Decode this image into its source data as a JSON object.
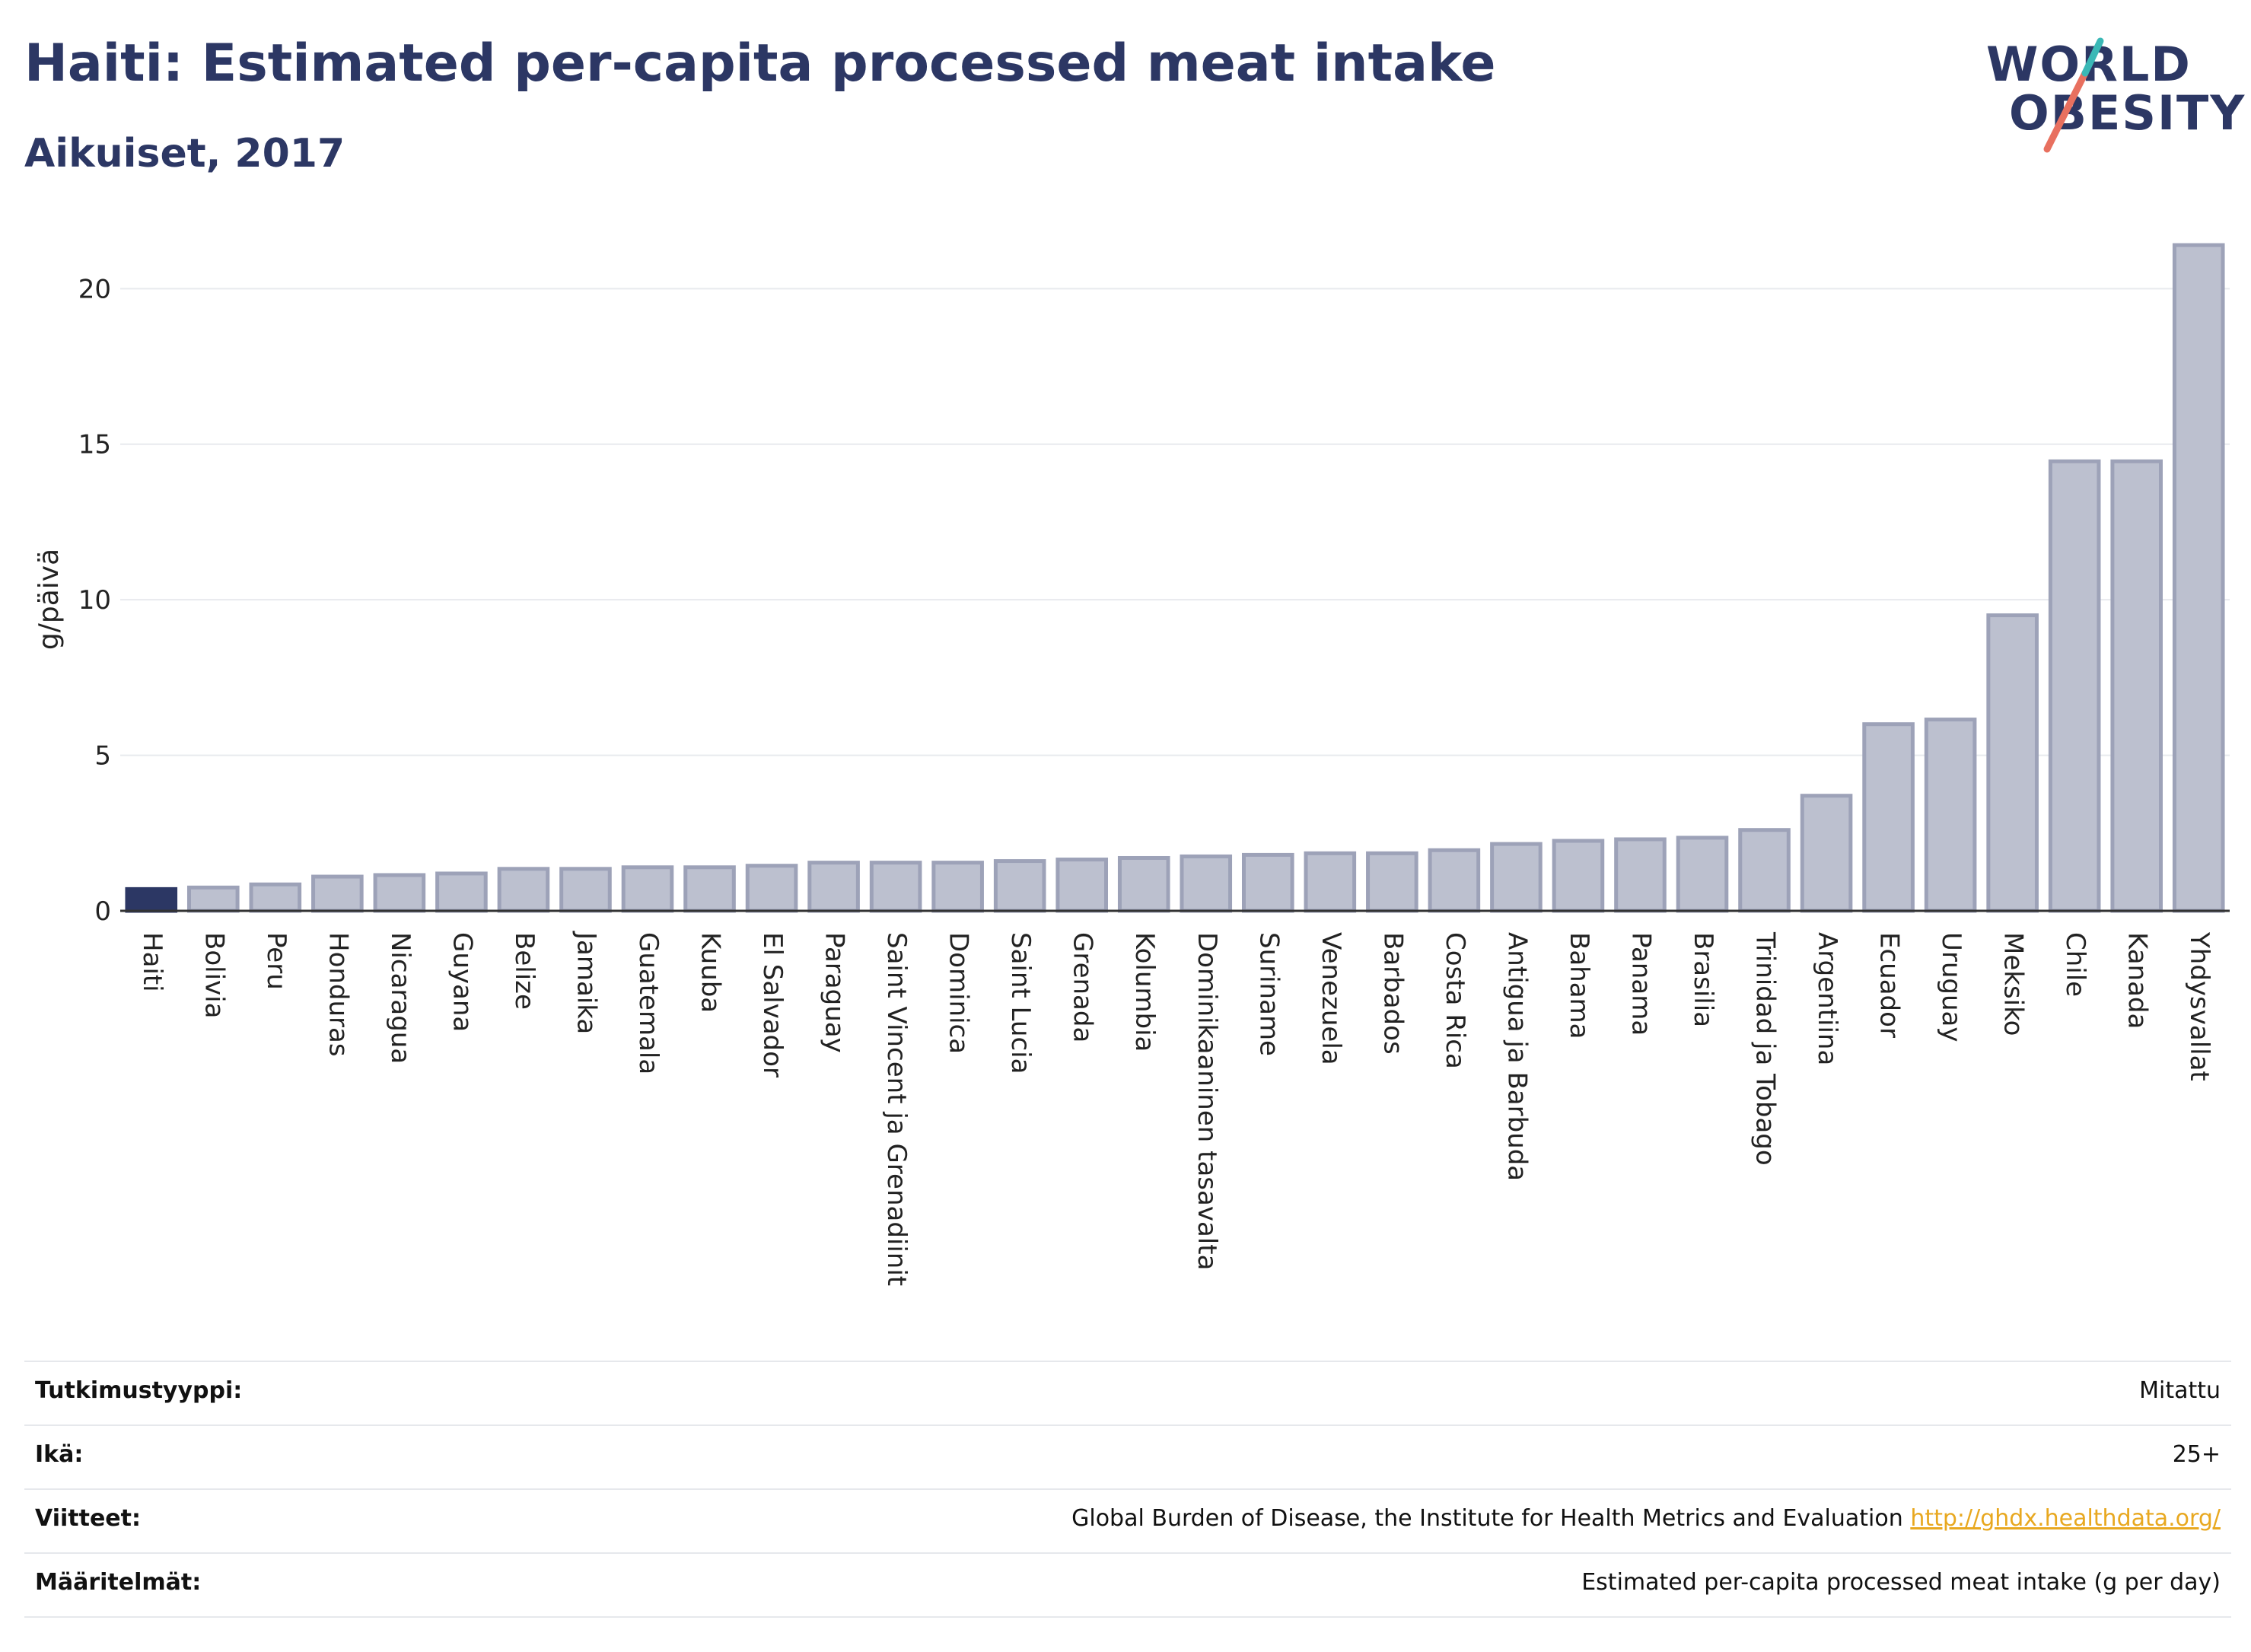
{
  "title": "Haiti: Estimated per-capita processed meat intake",
  "subtitle": "Aikuiset, 2017",
  "logo": {
    "line1": "WORLD",
    "line2": "OBESITY"
  },
  "colors": {
    "highlight": "#2c3764",
    "bar_fill": "#bcc0cf",
    "bar_stroke": "#9da2b8",
    "axis": "#333333",
    "grid": "#e8eaee",
    "title": "#2c3764",
    "link": "#e8a820",
    "logo_teal": "#3bb8b6",
    "logo_coral": "#e8705f"
  },
  "chart_data": {
    "type": "bar",
    "ylabel": "g/päivä",
    "xlabel": "",
    "ylim": [
      0,
      21.5
    ],
    "yticks": [
      0,
      5,
      10,
      15,
      20
    ],
    "grid": true,
    "highlight": "Haiti",
    "categories": [
      "Haiti",
      "Bolivia",
      "Peru",
      "Honduras",
      "Nicaragua",
      "Guyana",
      "Belize",
      "Jamaika",
      "Guatemala",
      "Kuuba",
      "El Salvador",
      "Paraguay",
      "Saint Vincent ja Grenadiinit",
      "Dominica",
      "Saint Lucia",
      "Grenada",
      "Kolumbia",
      "Dominikaaninen tasavalta",
      "Suriname",
      "Venezuela",
      "Barbados",
      "Costa Rica",
      "Antigua ja Barbuda",
      "Bahama",
      "Panama",
      "Brasilia",
      "Trinidad ja Tobago",
      "Argentiina",
      "Ecuador",
      "Uruguay",
      "Meksiko",
      "Chile",
      "Kanada",
      "Yhdysvallat"
    ],
    "values": [
      0.7,
      0.75,
      0.85,
      1.1,
      1.15,
      1.2,
      1.35,
      1.35,
      1.4,
      1.4,
      1.45,
      1.55,
      1.55,
      1.55,
      1.6,
      1.65,
      1.7,
      1.75,
      1.8,
      1.85,
      1.85,
      1.95,
      2.15,
      2.25,
      2.3,
      2.35,
      2.6,
      3.7,
      6.0,
      6.15,
      9.5,
      14.45,
      14.45,
      21.4
    ]
  },
  "meta": [
    {
      "label": "Tutkimustyyppi:",
      "value": "Mitattu",
      "link": ""
    },
    {
      "label": "Ikä:",
      "value": "25+",
      "link": ""
    },
    {
      "label": "Viitteet:",
      "value": "Global Burden of Disease, the Institute for Health Metrics and Evaluation",
      "link": "http://ghdx.healthdata.org/"
    },
    {
      "label": "Määritelmät:",
      "value": "Estimated per-capita processed meat intake (g per day)",
      "link": ""
    }
  ]
}
